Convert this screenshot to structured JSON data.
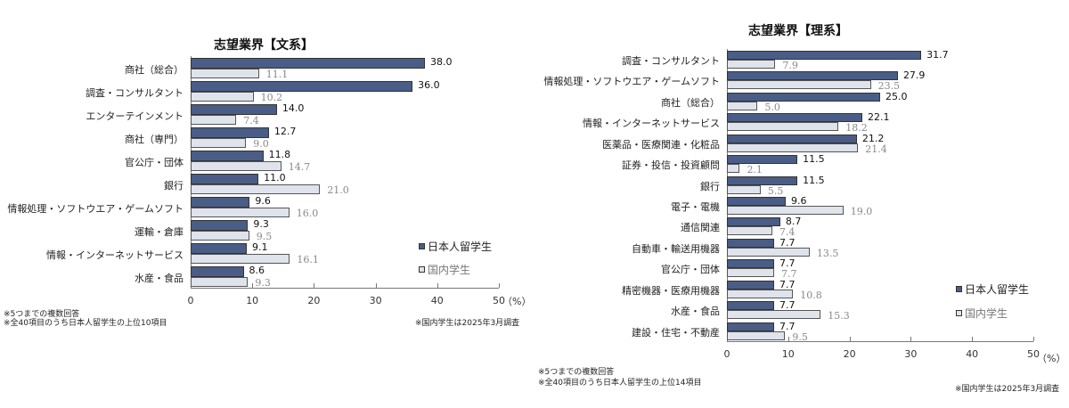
{
  "legend": {
    "series_a": "日本人留学生",
    "series_b": "国内学生",
    "color_a": "#4a5d86",
    "color_b": "#dfe3ec"
  },
  "left": {
    "title": "志望業界【文系】",
    "unit": "（%）",
    "notes": [
      "※5つまでの複数回答",
      "※全40項目のうち日本人留学生の上位10項目"
    ],
    "survey_note": "※国内学生は2025年3月調査"
  },
  "right": {
    "title": "志望業界【理系】",
    "unit": "（%）",
    "notes": [
      "※5つまでの複数回答",
      "※全40項目のうち日本人留学生の上位14項目"
    ],
    "survey_note": "※国内学生は2025年3月調査"
  },
  "chart_data": [
    {
      "type": "bar",
      "orientation": "horizontal",
      "title": "志望業界【文系】",
      "xlabel": "（%）",
      "xlim": [
        0,
        50
      ],
      "xticks": [
        0,
        10,
        20,
        30,
        40,
        50
      ],
      "legend_position": "right",
      "categories": [
        "商社（総合）",
        "調査・コンサルタント",
        "エンターテインメント",
        "商社（専門）",
        "官公庁・団体",
        "銀行",
        "情報処理・ソフトウエア・ゲームソフト",
        "運輸・倉庫",
        "情報・インターネットサービス",
        "水産・食品"
      ],
      "series": [
        {
          "name": "日本人留学生",
          "values": [
            38.0,
            36.0,
            14.0,
            12.7,
            11.8,
            11.0,
            9.6,
            9.3,
            9.1,
            8.6
          ]
        },
        {
          "name": "国内学生",
          "values": [
            11.1,
            10.2,
            7.4,
            9.0,
            14.7,
            21.0,
            16.0,
            9.5,
            16.1,
            9.3
          ]
        }
      ],
      "annotations": [
        "※5つまでの複数回答",
        "※全40項目のうち日本人留学生の上位10項目",
        "※国内学生は2025年3月調査"
      ]
    },
    {
      "type": "bar",
      "orientation": "horizontal",
      "title": "志望業界【理系】",
      "xlabel": "（%）",
      "xlim": [
        0,
        50
      ],
      "xticks": [
        0,
        10,
        20,
        30,
        40,
        50
      ],
      "legend_position": "right",
      "categories": [
        "調査・コンサルタント",
        "情報処理・ソフトウエア・ゲームソフト",
        "商社（総合）",
        "情報・インターネットサービス",
        "医薬品・医療関連・化粧品",
        "証券・投信・投資顧問",
        "銀行",
        "電子・電機",
        "通信関連",
        "自動車・輸送用機器",
        "官公庁・団体",
        "精密機器・医療用機器",
        "水産・食品",
        "建設・住宅・不動産"
      ],
      "series": [
        {
          "name": "日本人留学生",
          "values": [
            31.7,
            27.9,
            25.0,
            22.1,
            21.2,
            11.5,
            11.5,
            9.6,
            8.7,
            7.7,
            7.7,
            7.7,
            7.7,
            7.7
          ]
        },
        {
          "name": "国内学生",
          "values": [
            7.9,
            23.5,
            5.0,
            18.2,
            21.4,
            2.1,
            5.5,
            19.0,
            7.4,
            13.5,
            7.7,
            10.8,
            15.3,
            9.5
          ]
        }
      ],
      "annotations": [
        "※5つまでの複数回答",
        "※全40項目のうち日本人留学生の上位14項目",
        "※国内学生は2025年3月調査"
      ]
    }
  ]
}
